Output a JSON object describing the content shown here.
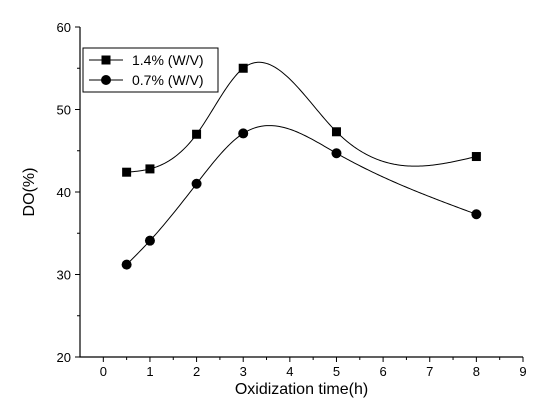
{
  "chart_data": {
    "type": "line",
    "xlabel": "Oxidization time(h)",
    "ylabel": "DO(%)",
    "xlim": [
      -0.5,
      9
    ],
    "ylim": [
      20,
      60
    ],
    "xticks": [
      0,
      1,
      2,
      3,
      4,
      5,
      6,
      7,
      8,
      9
    ],
    "yticks": [
      20,
      30,
      40,
      50,
      60
    ],
    "legend_position": "top-left",
    "grid": false,
    "smooth": true,
    "series": [
      {
        "name": "1.4% (W/V)",
        "marker": "square",
        "color": "#000000",
        "x": [
          0.5,
          1,
          2,
          3,
          5,
          8
        ],
        "y": [
          42.4,
          42.8,
          47.0,
          55.0,
          47.3,
          44.3
        ]
      },
      {
        "name": "0.7% (W/V)",
        "marker": "circle",
        "color": "#000000",
        "x": [
          0.5,
          1,
          2,
          3,
          5,
          8
        ],
        "y": [
          31.2,
          34.1,
          41.0,
          47.1,
          44.7,
          37.3
        ]
      }
    ]
  }
}
